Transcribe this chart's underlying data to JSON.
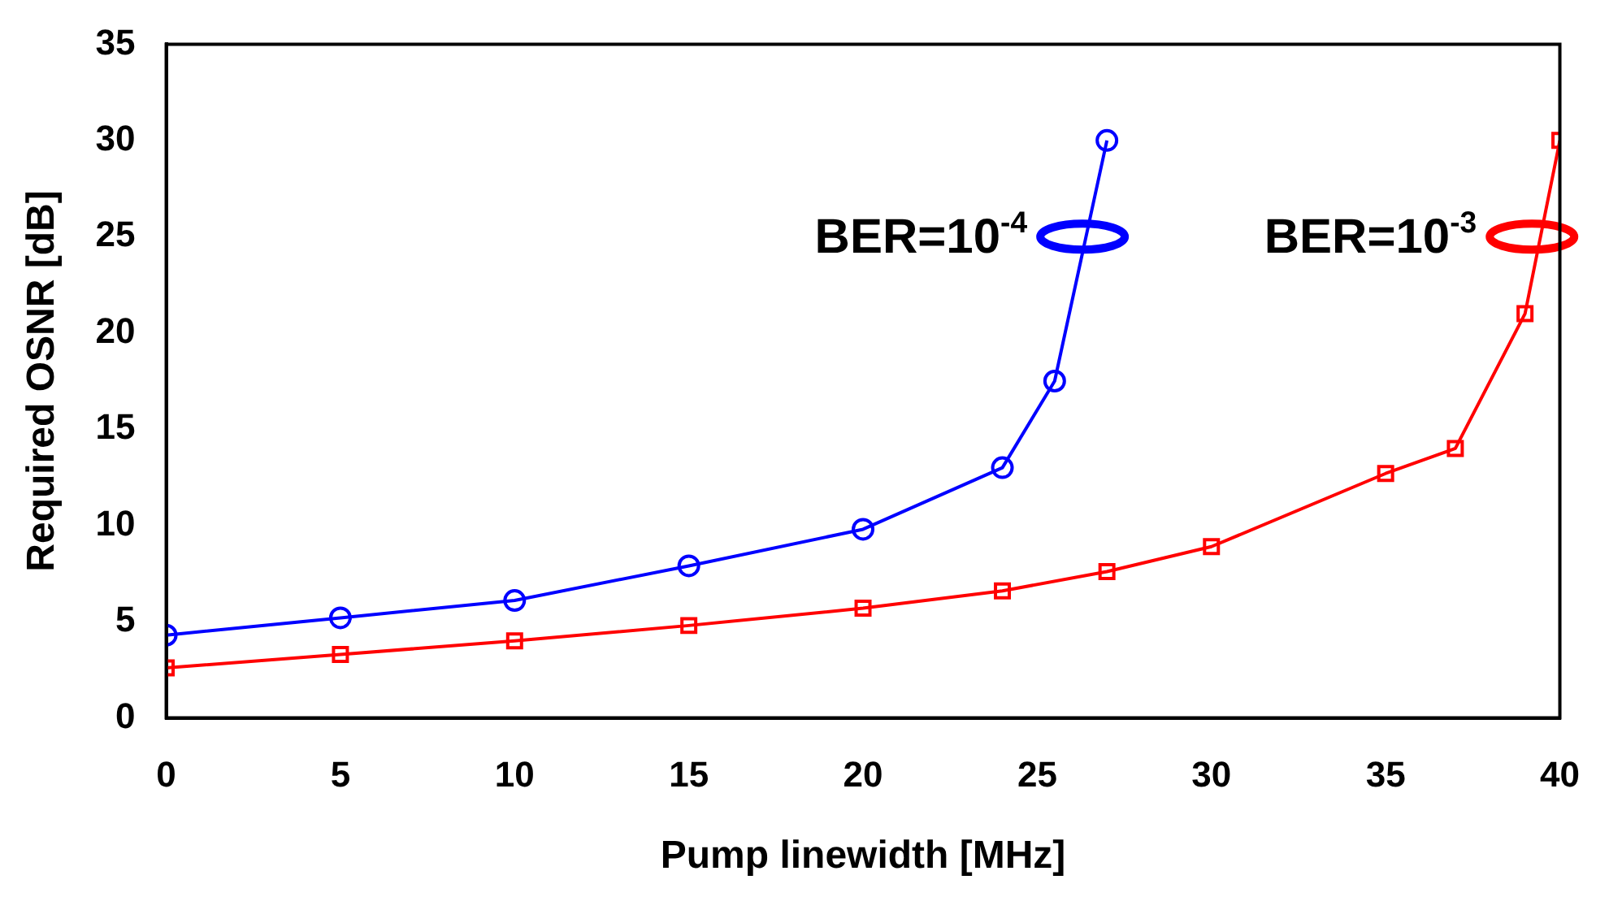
{
  "chart_data": {
    "type": "line",
    "xlabel": "Pump linewidth [MHz]",
    "ylabel": "Required OSNR [dB]",
    "xlim": [
      0,
      40
    ],
    "xticks": [
      0,
      5,
      10,
      15,
      20,
      25,
      30,
      35,
      40
    ],
    "ylim": [
      0,
      35
    ],
    "yticks": [
      0,
      5,
      10,
      15,
      20,
      25,
      30,
      35
    ],
    "grid": false,
    "legend": false,
    "line_style": "solid",
    "series": [
      {
        "color": "#0000ff",
        "marker": "circle",
        "x": [
          0,
          5,
          10,
          15,
          20,
          24,
          25.5,
          27
        ],
        "values": [
          4.3,
          5.2,
          6.1,
          7.9,
          9.8,
          13,
          17.5,
          30
        ]
      },
      {
        "color": "#ff0000",
        "marker": "square",
        "x": [
          0,
          5,
          10,
          15,
          20,
          24,
          27,
          30,
          35,
          37,
          39,
          40
        ],
        "values": [
          2.6,
          3.3,
          4,
          4.8,
          5.7,
          6.6,
          7.6,
          8.9,
          12.7,
          14,
          21,
          30
        ]
      }
    ],
    "annotations": [
      {
        "text": "BER=10$^{-4}$",
        "x": 26.3,
        "y": 25
      },
      {
        "text": "BER=10$^{-3}$",
        "x": 39.2,
        "y": 25
      }
    ]
  }
}
